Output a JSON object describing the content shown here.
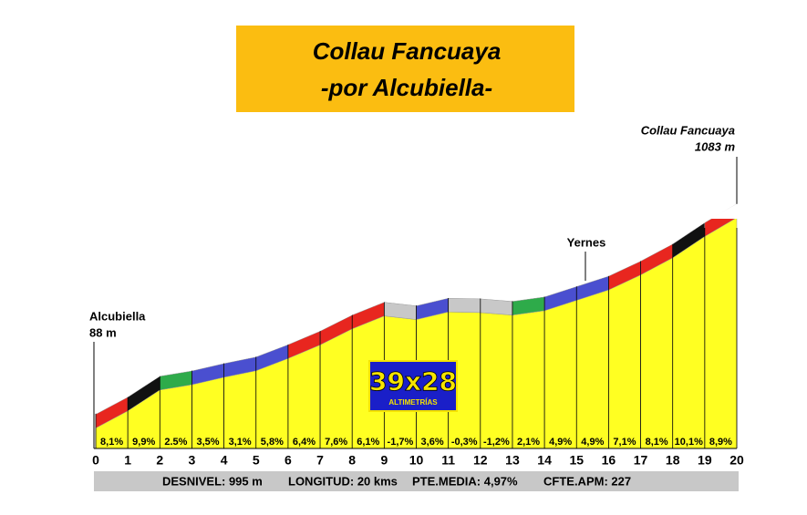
{
  "chart_data": {
    "type": "profile",
    "title": "Collau Fancuaya",
    "subtitle": "-por Alcubiella-",
    "xlim": [
      0,
      20
    ],
    "xticks": [
      0,
      1,
      2,
      3,
      4,
      5,
      6,
      7,
      8,
      9,
      10,
      11,
      12,
      13,
      14,
      15,
      16,
      17,
      18,
      19,
      20
    ],
    "values": [
      8.1,
      9.9,
      2.5,
      3.5,
      3.1,
      5.8,
      6.4,
      7.6,
      6.1,
      -1.7,
      3.6,
      -0.3,
      -1.2,
      2.1,
      4.9,
      4.9,
      7.1,
      8.1,
      10.1,
      8.9
    ],
    "value_labels": [
      "8,1%",
      "9,9%",
      "2.5%",
      "3,5%",
      "3,1%",
      "5,8%",
      "6,4%",
      "7,6%",
      "6,1%",
      "-1,7%",
      "3,6%",
      "-0,3%",
      "-1,2%",
      "2,1%",
      "4,9%",
      "4,9%",
      "7,1%",
      "8,1%",
      "10,1%",
      "8,9%"
    ],
    "colors": [
      "#e8261f",
      "#111111",
      "#2eab4a",
      "#4a4fd0",
      "#4a4fd0",
      "#4a4fd0",
      "#e8261f",
      "#e8261f",
      "#e8261f",
      "#c8c8c8",
      "#4a4fd0",
      "#c8c8c8",
      "#c8c8c8",
      "#2eab4a",
      "#4a4fd0",
      "#4a4fd0",
      "#e8261f",
      "#e8261f",
      "#111111",
      "#e8261f"
    ],
    "fill_color": "#ffff22",
    "start": {
      "name": "Alcubiella",
      "elevation": {
        "value": 88,
        "label": "88 m"
      }
    },
    "end": {
      "name": "Collau Fancuaya",
      "elevation": {
        "value": 1083,
        "label": "1083 m"
      }
    },
    "annotations": [
      "Yernes"
    ],
    "logo": {
      "title": "39x28",
      "subtitle": "ALTIMETRÍAS"
    },
    "footer": [
      "DESNIVEL: 995 m",
      "LONGITUD:  20 kms",
      "PTE.MEDIA:   4,97%",
      "CFTE.APM:   227"
    ]
  }
}
